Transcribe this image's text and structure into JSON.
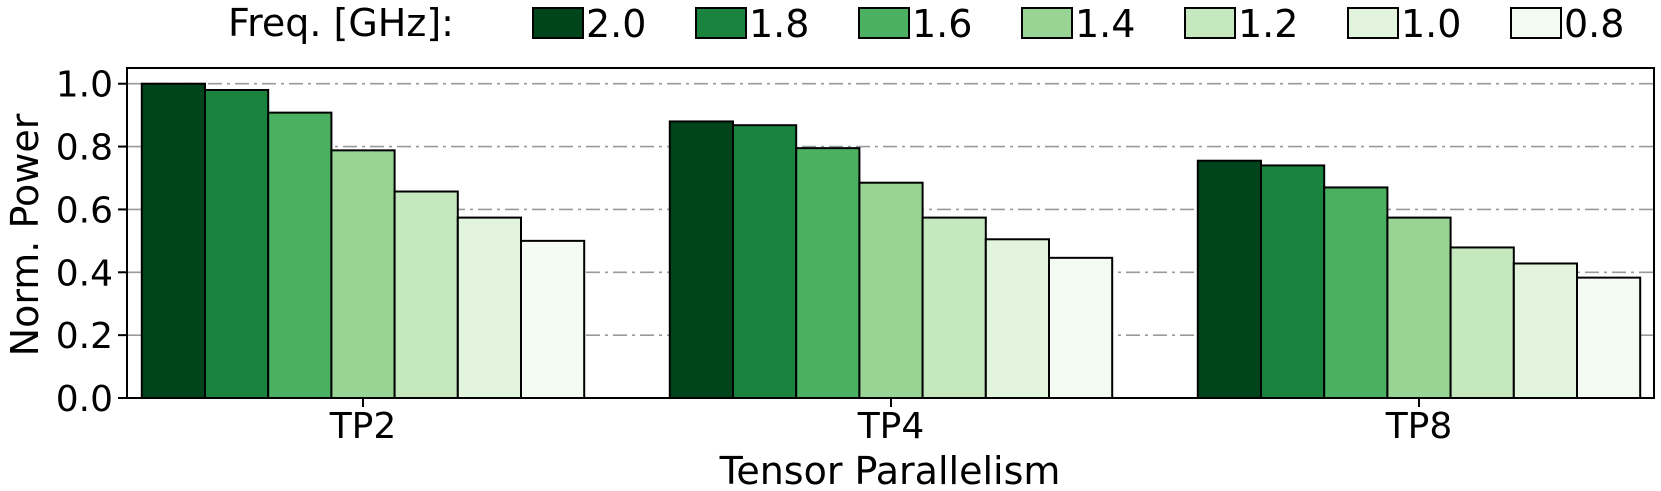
{
  "chart_data": {
    "type": "bar",
    "categories": [
      "TP2",
      "TP4",
      "TP8"
    ],
    "series": [
      {
        "name": "2.0",
        "color": "#00441b",
        "values": [
          1.0,
          0.88,
          0.755
        ]
      },
      {
        "name": "1.8",
        "color": "#1a843f",
        "values": [
          0.98,
          0.868,
          0.74
        ]
      },
      {
        "name": "1.6",
        "color": "#4bb062",
        "values": [
          0.908,
          0.795,
          0.67
        ]
      },
      {
        "name": "1.4",
        "color": "#98d594",
        "values": [
          0.788,
          0.685,
          0.574
        ]
      },
      {
        "name": "1.2",
        "color": "#c5e8bf",
        "values": [
          0.657,
          0.574,
          0.479
        ]
      },
      {
        "name": "1.0",
        "color": "#e2f4dd",
        "values": [
          0.574,
          0.505,
          0.428
        ]
      },
      {
        "name": "0.8",
        "color": "#f4fbf2",
        "values": [
          0.5,
          0.446,
          0.383
        ]
      }
    ],
    "xlabel": "Tensor Parallelism",
    "ylabel": "Norm. Power",
    "ylim": [
      0,
      1.05
    ],
    "yticks": [
      0.0,
      0.2,
      0.4,
      0.6,
      0.8,
      1.0
    ],
    "ytick_labels": [
      "0.0",
      "0.2",
      "0.4",
      "0.6",
      "0.8",
      "1.0"
    ],
    "grid": "horizontal dash-dot",
    "legend": {
      "title": "Freq. [GHz]:",
      "placement": "top"
    }
  }
}
